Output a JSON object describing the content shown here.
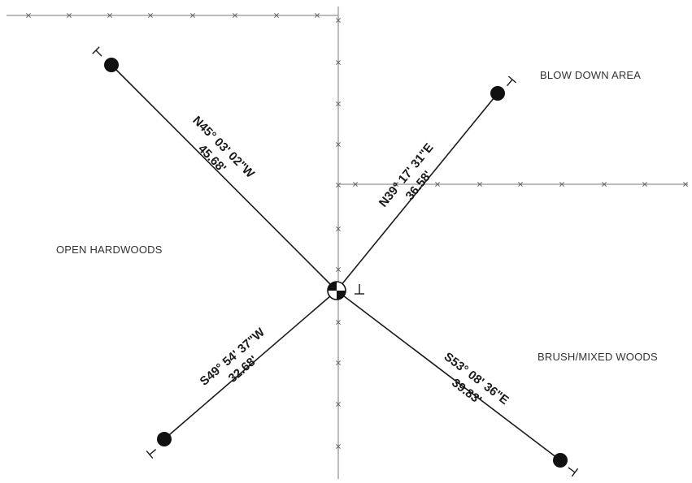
{
  "areas": {
    "blow_down": "BLOW DOWN AREA",
    "open_hardwoods": "OPEN HARDWOODS",
    "brush_mixed": "BRUSH/MIXED WOODS"
  },
  "lines": {
    "nw": {
      "bearing": "N45° 03' 02\"W",
      "distance": "45.68'"
    },
    "ne": {
      "bearing": "N39° 17' 31\"E",
      "distance": "36.58'"
    },
    "sw": {
      "bearing": "S49° 54' 37\"W",
      "distance": "32.68'"
    },
    "se": {
      "bearing": "S53° 08' 36\"E",
      "distance": "39.83'"
    }
  }
}
